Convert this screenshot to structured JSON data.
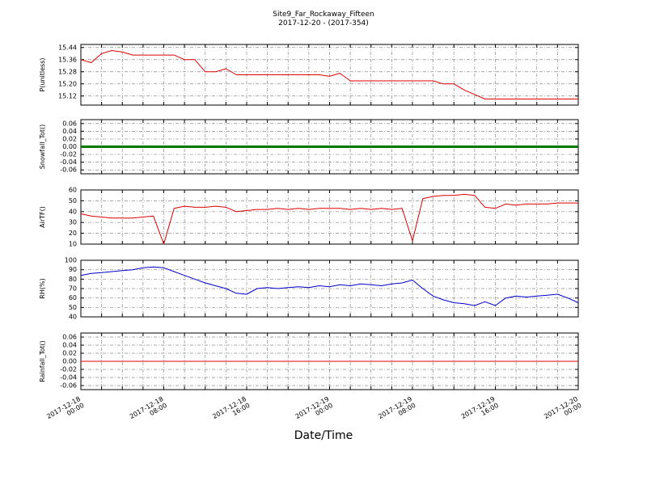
{
  "title": {
    "line1": "Site9_Far_Rockaway_Fifteen",
    "line2": "2017-12-20 - (2017-354)"
  },
  "xlabel": "Date/Time",
  "chart_data": {
    "type": "line",
    "title": "Site9_Far_Rockaway_Fifteen",
    "subtitle": "2017-12-20 - (2017-354)",
    "xlabel": "Date/Time",
    "x_unit": "hours since 2017-12-18 00:00",
    "x_range": [
      0,
      48
    ],
    "minor_grid_hours": 2,
    "grid": "dash-dot both axes",
    "x_ticks": [
      {
        "hour": 0,
        "date": "2017-12-18",
        "time": "00:00"
      },
      {
        "hour": 8,
        "date": "2017-12-18",
        "time": "08:00"
      },
      {
        "hour": 16,
        "date": "2017-12-18",
        "time": "16:00"
      },
      {
        "hour": 24,
        "date": "2017-12-19",
        "time": "00:00"
      },
      {
        "hour": 32,
        "date": "2017-12-19",
        "time": "08:00"
      },
      {
        "hour": 40,
        "date": "2017-12-19",
        "time": "16:00"
      },
      {
        "hour": 48,
        "date": "2017-12-20",
        "time": "00:00"
      }
    ],
    "subplots": [
      {
        "name": "P",
        "ylabel": "P(unitless)",
        "color": "#dd0000",
        "linewidth": 1,
        "ylim": [
          15.06,
          15.46
        ],
        "yticks": [
          15.12,
          15.2,
          15.28,
          15.36,
          15.44
        ],
        "ytick_decimals": 2,
        "values": [
          15.36,
          15.34,
          15.4,
          15.42,
          15.41,
          15.39,
          15.39,
          15.39,
          15.39,
          15.39,
          15.36,
          15.36,
          15.28,
          15.28,
          15.3,
          15.26,
          15.26,
          15.26,
          15.26,
          15.26,
          15.26,
          15.26,
          15.26,
          15.26,
          15.25,
          15.27,
          15.22,
          15.22,
          15.22,
          15.22,
          15.22,
          15.22,
          15.22,
          15.22,
          15.22,
          15.2,
          15.2,
          15.16,
          15.13,
          15.1,
          15.1,
          15.1,
          15.1,
          15.1,
          15.1,
          15.1,
          15.1,
          15.1,
          15.1
        ]
      },
      {
        "name": "Snowfall_Tot",
        "ylabel": "Snowfall_Tot()",
        "color": "#007700",
        "linewidth": 3,
        "ylim": [
          -0.07,
          0.07
        ],
        "yticks": [
          -0.06,
          -0.04,
          -0.02,
          0.0,
          0.02,
          0.04,
          0.06
        ],
        "ytick_decimals": 2,
        "values": [
          0,
          0,
          0,
          0,
          0,
          0,
          0,
          0,
          0,
          0,
          0,
          0,
          0,
          0,
          0,
          0,
          0,
          0,
          0,
          0,
          0,
          0,
          0,
          0,
          0,
          0,
          0,
          0,
          0,
          0,
          0,
          0,
          0,
          0,
          0,
          0,
          0,
          0,
          0,
          0,
          0,
          0,
          0,
          0,
          0,
          0,
          0,
          0,
          0
        ]
      },
      {
        "name": "AirTF",
        "ylabel": "AirTF()",
        "color": "#dd0000",
        "linewidth": 1,
        "ylim": [
          10,
          60
        ],
        "yticks": [
          10,
          20,
          30,
          40,
          50,
          60
        ],
        "ytick_decimals": 0,
        "values": [
          38,
          36,
          35,
          34,
          34,
          34,
          35,
          36,
          10,
          43,
          45,
          44,
          44,
          45,
          44,
          40,
          41,
          42,
          42,
          43,
          42,
          43,
          42,
          43,
          43,
          43,
          42,
          43,
          42,
          43,
          42,
          43,
          13,
          52,
          54,
          55,
          55,
          56,
          55,
          44,
          43,
          47,
          46,
          47,
          47,
          47,
          48,
          48,
          48
        ]
      },
      {
        "name": "RH",
        "ylabel": "RH(%)",
        "color": "#0000cc",
        "linewidth": 1,
        "ylim": [
          40,
          100
        ],
        "yticks": [
          40,
          50,
          60,
          70,
          80,
          90,
          100
        ],
        "ytick_decimals": 0,
        "values": [
          84,
          86,
          87,
          88,
          89,
          90,
          92,
          93,
          92,
          88,
          84,
          80,
          76,
          73,
          70,
          65,
          64,
          70,
          71,
          70,
          71,
          72,
          71,
          73,
          72,
          74,
          73,
          75,
          74,
          73,
          75,
          76,
          79,
          70,
          62,
          58,
          55,
          54,
          52,
          56,
          52,
          60,
          62,
          61,
          62,
          63,
          64,
          60,
          55
        ]
      },
      {
        "name": "Rainfall_Tot",
        "ylabel": "Rainfall_Tot()",
        "color": "#dd0000",
        "linewidth": 1,
        "ylim": [
          -0.07,
          0.07
        ],
        "yticks": [
          -0.06,
          -0.04,
          -0.02,
          0.0,
          0.02,
          0.04,
          0.06
        ],
        "ytick_decimals": 2,
        "values": [
          0,
          0,
          0,
          0,
          0,
          0,
          0,
          0,
          0,
          0,
          0,
          0,
          0,
          0,
          0,
          0,
          0,
          0,
          0,
          0,
          0,
          0,
          0,
          0,
          0,
          0,
          0,
          0,
          0,
          0,
          0,
          0,
          0,
          0,
          0,
          0,
          0,
          0,
          0,
          0,
          0,
          0,
          0,
          0,
          0,
          0,
          0,
          0,
          0
        ]
      }
    ]
  }
}
